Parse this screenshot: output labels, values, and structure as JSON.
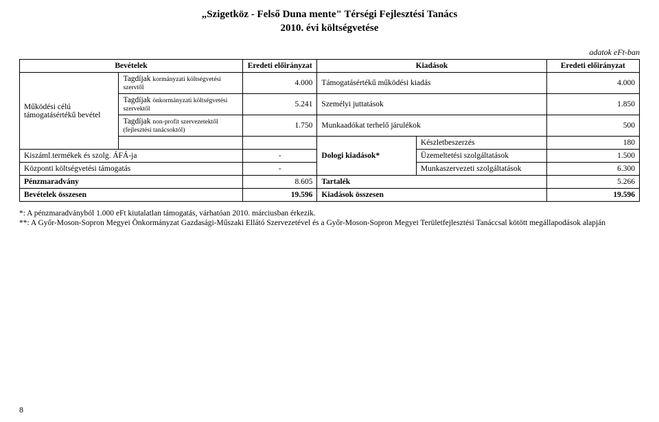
{
  "title": {
    "line1": "„Szigetköz - Felső Duna mente\" Térségi Fejlesztési Tanács",
    "line2": "2010. évi költségvetése"
  },
  "unit_note": "adatok eFt-ban",
  "headers": {
    "income": "Bevételek",
    "orig_income": "Eredeti előirányzat",
    "expense": "Kiadások",
    "orig_expense": "Eredeti előirányzat"
  },
  "rows": {
    "row1": {
      "left_main": "Tagdíjak",
      "left_sub": "kormányzati költségvetési szervtől",
      "left_amount": "4.000",
      "right_label": "Támogatásértékű működési kiadás",
      "right_amount": "4.000"
    },
    "group_label": "Működési célú támogatásértékű bevétel",
    "row2": {
      "left_main": "Tagdíjak",
      "left_sub": "önkormányzati költségvetési szervektől",
      "left_amount": "5.241",
      "right_label": "Személyi juttatások",
      "right_amount": "1.850"
    },
    "row3": {
      "left_main": "Tagdíjak",
      "left_sub": "non-profit szervezetektől (fejlesztési tanácsoktól)",
      "left_amount": "1.750",
      "right_label": "Munkaadókat terhelő járulékok",
      "right_amount": "500"
    },
    "row4": {
      "right_label": "Készletbeszerzés",
      "right_amount": "180"
    },
    "row5": {
      "left_label": "Kiszáml.termékek és szolg. ÁFÁ-ja",
      "left_amount": "-",
      "mid_label": "Dologi kiadások*",
      "right_label": "Üzemeltetési szolgáltatások",
      "right_amount": "1.500"
    },
    "row6": {
      "left_label": "Központi költségvetési támogatás",
      "left_amount": "-",
      "right_label": "Munkaszervezeti szolgáltatások",
      "right_amount": "6.300"
    },
    "row7": {
      "left_label": "Pénzmaradvány",
      "left_amount": "8.605",
      "right_label": "Tartalék",
      "right_amount": "5.266"
    },
    "total": {
      "left_label": "Bevételek összesen",
      "left_amount": "19.596",
      "right_label": "Kiadások összesen",
      "right_amount": "19.596"
    }
  },
  "footnotes": {
    "f1": "*: A pénzmaradványból 1.000 eFt kiutalatlan támogatás, várhatóan 2010. márciusban érkezik.",
    "f2": "**: A Győr-Moson-Sopron Megyei Önkormányzat Gazdasági-Műszaki Ellátó Szervezetével és a Győr-Moson-Sopron Megyei Területfejlesztési Tanáccsal kötött megállapodások alapján"
  },
  "page_number": "8",
  "col_widths": {
    "c1": "16%",
    "c2": "20%",
    "c3": "12%",
    "c4": "16%",
    "c5": "21%",
    "c6": "15%"
  }
}
